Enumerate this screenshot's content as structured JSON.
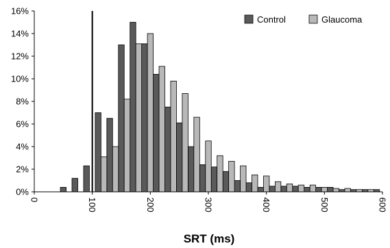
{
  "chart_data": {
    "type": "bar",
    "xlabel": "SRT (ms)",
    "xlim": [
      0,
      600
    ],
    "ylim": [
      0,
      16
    ],
    "bin_width": 10,
    "x_ticks": [
      "0",
      "100",
      "200",
      "300",
      "400",
      "500",
      "600"
    ],
    "x_tick_values": [
      0,
      100,
      200,
      300,
      400,
      500,
      600
    ],
    "y_ticks": [
      "0%",
      "2%",
      "4%",
      "6%",
      "8%",
      "10%",
      "12%",
      "14%",
      "16%"
    ],
    "y_tick_values": [
      0,
      2,
      4,
      6,
      8,
      10,
      12,
      14,
      16
    ],
    "vertical_line_x": 100,
    "legend_position": "top-right",
    "series": [
      {
        "name": "Control",
        "color": "#5a5a5a",
        "x": [
          50,
          70,
          90,
          110,
          130,
          150,
          170,
          190,
          210,
          230,
          250,
          270,
          290,
          310,
          330,
          350,
          370,
          390,
          410,
          430,
          450,
          470,
          490,
          510,
          530,
          550,
          570,
          590
        ],
        "values": [
          0.4,
          1.2,
          2.3,
          7.0,
          6.5,
          13.0,
          15.0,
          13.1,
          10.4,
          7.5,
          6.1,
          4.0,
          2.4,
          2.2,
          1.8,
          1.0,
          0.8,
          0.4,
          0.5,
          0.5,
          0.5,
          0.4,
          0.4,
          0.4,
          0.2,
          0.2,
          0.2,
          0.2
        ]
      },
      {
        "name": "Glaucoma",
        "color": "#b8b8b8",
        "x": [
          120,
          140,
          160,
          180,
          200,
          220,
          240,
          260,
          280,
          300,
          320,
          340,
          360,
          380,
          400,
          420,
          440,
          460,
          480,
          500,
          520,
          540,
          560,
          580
        ],
        "values": [
          3.1,
          4.0,
          8.2,
          13.1,
          14.0,
          11.1,
          9.8,
          8.7,
          6.6,
          4.5,
          3.2,
          2.7,
          2.3,
          1.5,
          1.4,
          0.9,
          0.7,
          0.6,
          0.6,
          0.4,
          0.3,
          0.3,
          0.2,
          0.2
        ]
      }
    ]
  }
}
